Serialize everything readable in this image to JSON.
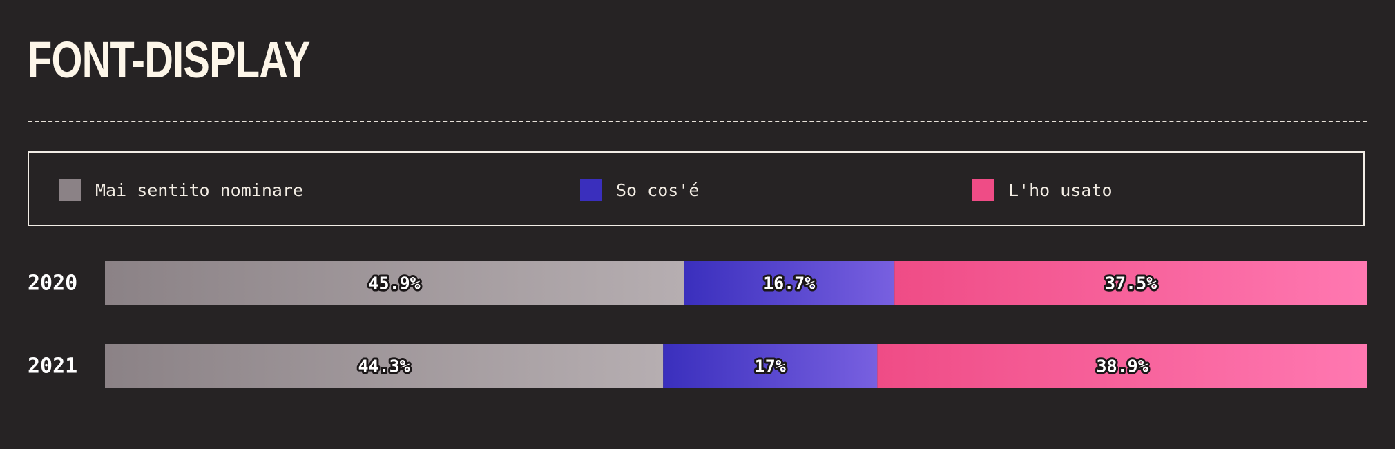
{
  "chart_data": {
    "type": "bar",
    "stacked": true,
    "orientation": "horizontal",
    "normalized_percent": true,
    "title": "FONT-DISPLAY",
    "categories": [
      "2020",
      "2021"
    ],
    "series": [
      {
        "name": "Mai sentito nominare",
        "values": [
          45.9,
          44.3
        ],
        "labels": [
          "45.9%",
          "44.3%"
        ],
        "color": "#8b8286",
        "color_end": "#b6aeb1"
      },
      {
        "name": "So cos'é",
        "values": [
          16.7,
          17
        ],
        "labels": [
          "16.7%",
          "17%"
        ],
        "color": "#3a2fbd",
        "color_end": "#7860e0"
      },
      {
        "name": "L'ho usato",
        "values": [
          37.5,
          38.9
        ],
        "labels": [
          "37.5%",
          "38.9%"
        ],
        "color": "#ef4c86",
        "color_end": "#ff78b1"
      }
    ],
    "xlim": [
      0,
      100
    ],
    "grid": false,
    "legend": "top"
  }
}
